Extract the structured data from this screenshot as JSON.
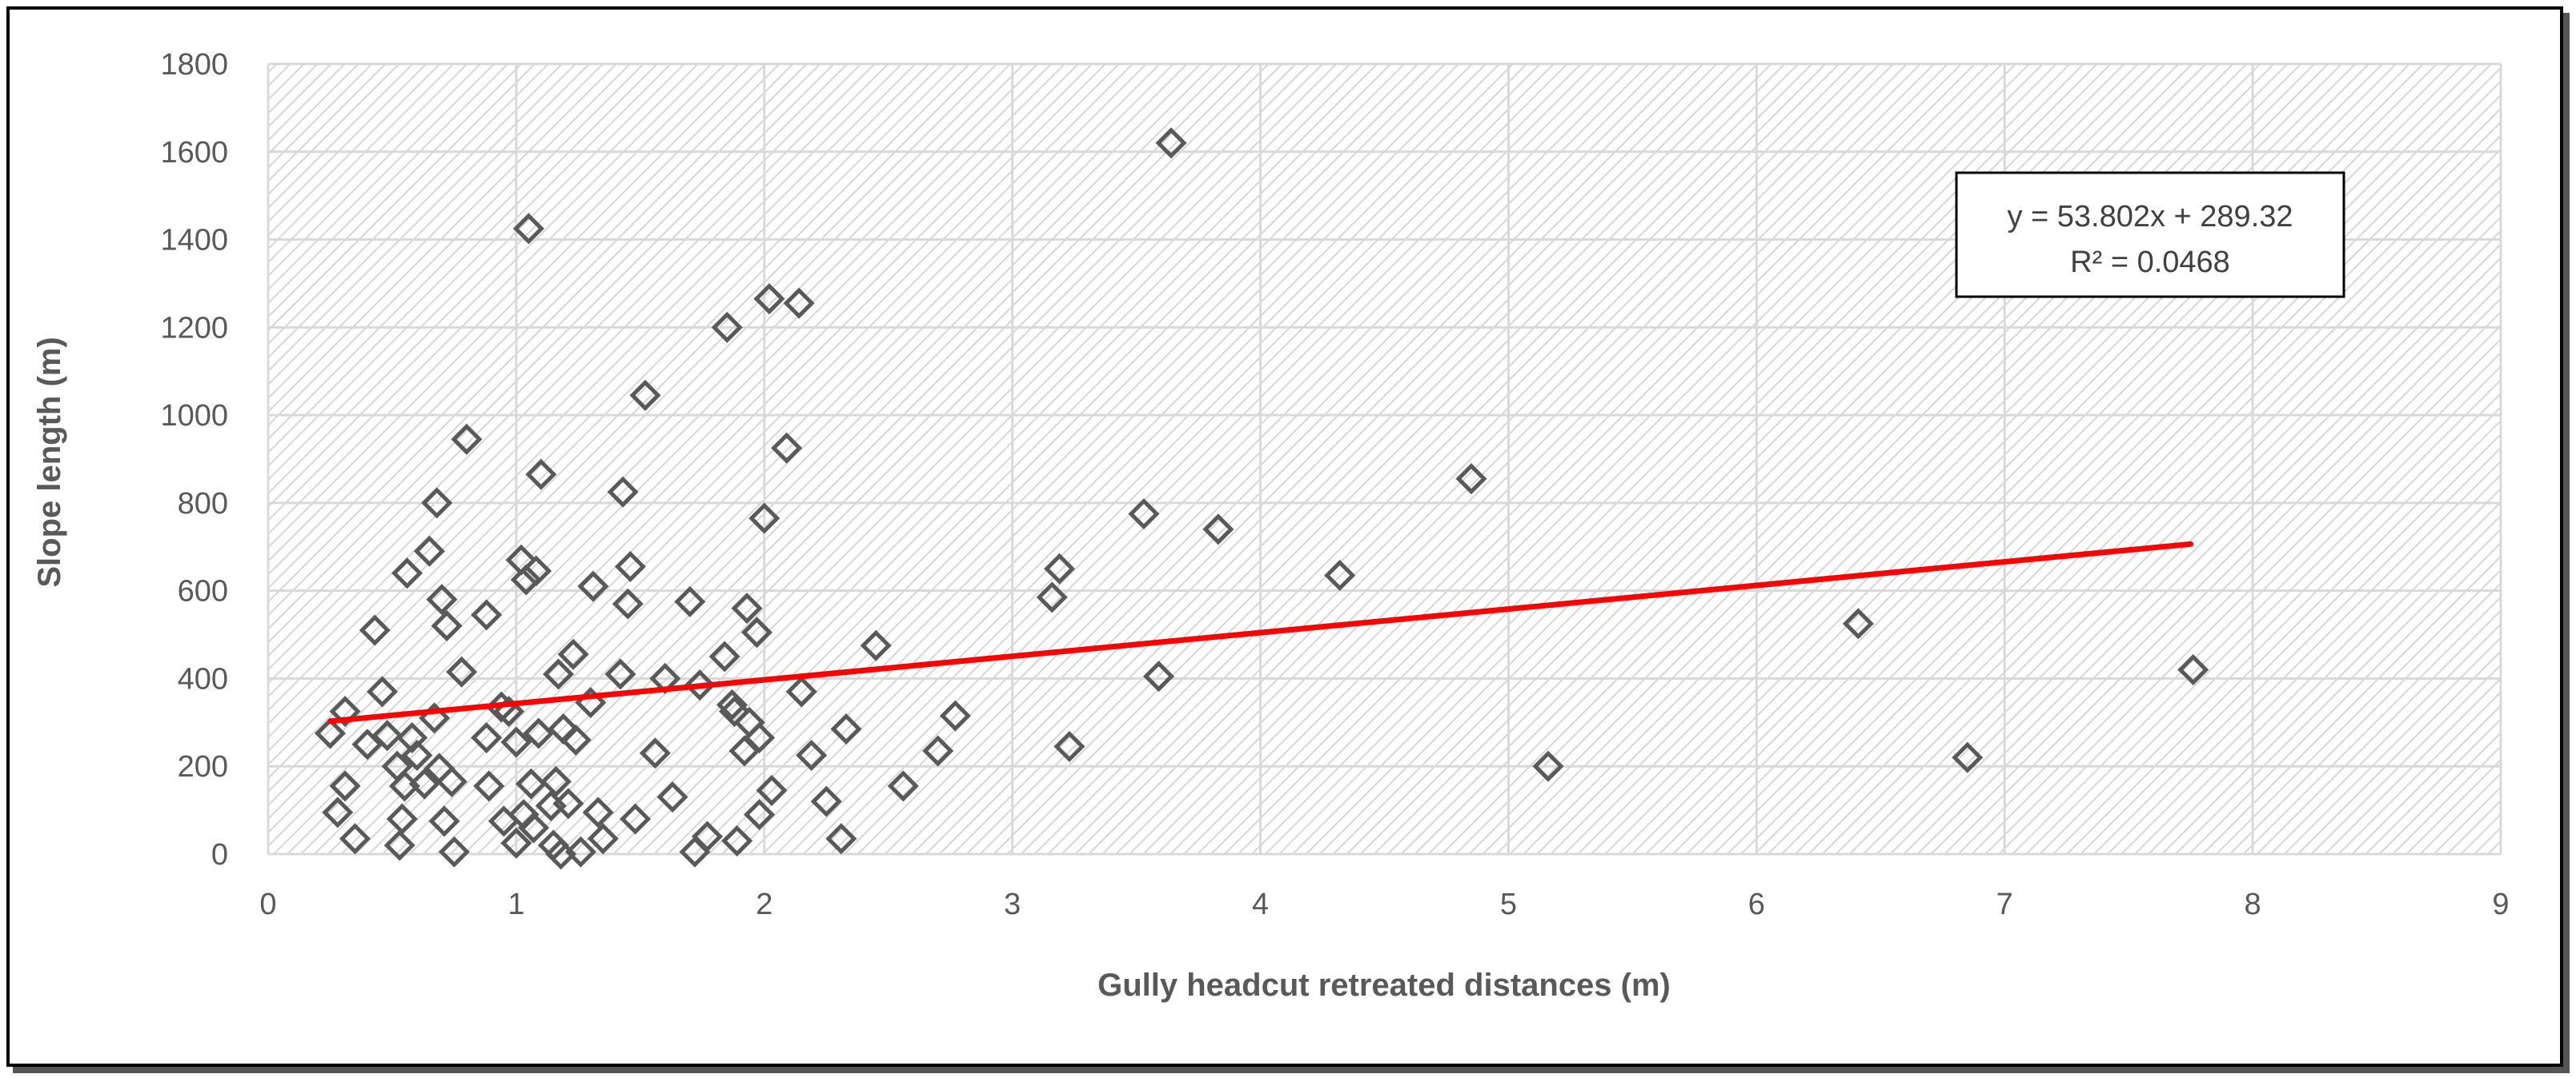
{
  "chart_data": {
    "type": "scatter",
    "xlabel": "Gully headcut retreated distances (m)",
    "ylabel": "Slope length (m)",
    "xlim": [
      0,
      9
    ],
    "ylim": [
      0,
      1800
    ],
    "x_ticks": [
      "0",
      "1",
      "2",
      "3",
      "4",
      "5",
      "6",
      "7",
      "8",
      "9"
    ],
    "y_ticks": [
      "0",
      "200",
      "400",
      "600",
      "800",
      "1000",
      "1200",
      "1400",
      "1600",
      "1800"
    ],
    "grid": true,
    "trendline": {
      "slope": 53.802,
      "intercept": 289.32,
      "x_range": [
        0.25,
        7.75
      ],
      "color": "#ff0000"
    },
    "equation_text": "y = 53.802x + 289.32",
    "r2_text": "R² = 0.0468",
    "marker_color": "#595959",
    "points": [
      [
        0.25,
        275
      ],
      [
        0.28,
        95
      ],
      [
        0.31,
        155
      ],
      [
        0.31,
        325
      ],
      [
        0.35,
        35
      ],
      [
        0.4,
        250
      ],
      [
        0.43,
        510
      ],
      [
        0.46,
        370
      ],
      [
        0.48,
        270
      ],
      [
        0.52,
        200
      ],
      [
        0.53,
        20
      ],
      [
        0.54,
        80
      ],
      [
        0.55,
        155
      ],
      [
        0.56,
        640
      ],
      [
        0.58,
        265
      ],
      [
        0.6,
        225
      ],
      [
        0.63,
        160
      ],
      [
        0.65,
        690
      ],
      [
        0.67,
        310
      ],
      [
        0.68,
        800
      ],
      [
        0.69,
        195
      ],
      [
        0.7,
        580
      ],
      [
        0.71,
        75
      ],
      [
        0.72,
        520
      ],
      [
        0.74,
        165
      ],
      [
        0.75,
        5
      ],
      [
        0.78,
        415
      ],
      [
        0.8,
        945
      ],
      [
        0.88,
        545
      ],
      [
        0.88,
        265
      ],
      [
        0.89,
        155
      ],
      [
        0.94,
        335
      ],
      [
        0.95,
        75
      ],
      [
        0.97,
        325
      ],
      [
        1.0,
        25
      ],
      [
        1.0,
        255
      ],
      [
        1.02,
        670
      ],
      [
        1.03,
        90
      ],
      [
        1.04,
        625
      ],
      [
        1.05,
        1425
      ],
      [
        1.06,
        160
      ],
      [
        1.07,
        60
      ],
      [
        1.08,
        645
      ],
      [
        1.09,
        275
      ],
      [
        1.1,
        865
      ],
      [
        1.14,
        110
      ],
      [
        1.15,
        20
      ],
      [
        1.16,
        165
      ],
      [
        1.17,
        410
      ],
      [
        1.18,
        0
      ],
      [
        1.19,
        285
      ],
      [
        1.21,
        115
      ],
      [
        1.23,
        455
      ],
      [
        1.24,
        260
      ],
      [
        1.26,
        5
      ],
      [
        1.3,
        345
      ],
      [
        1.31,
        610
      ],
      [
        1.33,
        95
      ],
      [
        1.35,
        35
      ],
      [
        1.42,
        410
      ],
      [
        1.43,
        825
      ],
      [
        1.45,
        570
      ],
      [
        1.46,
        655
      ],
      [
        1.48,
        80
      ],
      [
        1.52,
        1045
      ],
      [
        1.56,
        230
      ],
      [
        1.6,
        400
      ],
      [
        1.63,
        130
      ],
      [
        1.7,
        575
      ],
      [
        1.72,
        5
      ],
      [
        1.74,
        385
      ],
      [
        1.77,
        40
      ],
      [
        1.84,
        450
      ],
      [
        1.85,
        1200
      ],
      [
        1.87,
        340
      ],
      [
        1.88,
        325
      ],
      [
        1.89,
        30
      ],
      [
        1.92,
        235
      ],
      [
        1.93,
        560
      ],
      [
        1.94,
        300
      ],
      [
        1.97,
        505
      ],
      [
        1.98,
        265
      ],
      [
        1.98,
        90
      ],
      [
        2.0,
        765
      ],
      [
        2.02,
        1265
      ],
      [
        2.03,
        145
      ],
      [
        2.09,
        925
      ],
      [
        2.14,
        1255
      ],
      [
        2.15,
        370
      ],
      [
        2.19,
        225
      ],
      [
        2.25,
        120
      ],
      [
        2.31,
        35
      ],
      [
        2.33,
        285
      ],
      [
        2.45,
        475
      ],
      [
        2.56,
        155
      ],
      [
        2.7,
        235
      ],
      [
        2.77,
        315
      ],
      [
        3.16,
        585
      ],
      [
        3.19,
        650
      ],
      [
        3.23,
        245
      ],
      [
        3.53,
        775
      ],
      [
        3.59,
        405
      ],
      [
        3.64,
        1620
      ],
      [
        3.83,
        740
      ],
      [
        4.32,
        635
      ],
      [
        4.85,
        855
      ],
      [
        5.16,
        200
      ],
      [
        6.41,
        525
      ],
      [
        6.85,
        220
      ],
      [
        7.76,
        420
      ]
    ]
  }
}
